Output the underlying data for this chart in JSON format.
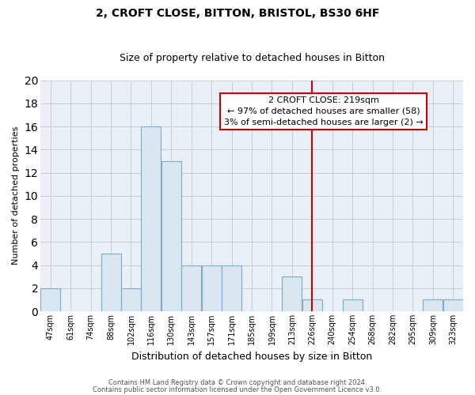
{
  "title": "2, CROFT CLOSE, BITTON, BRISTOL, BS30 6HF",
  "subtitle": "Size of property relative to detached houses in Bitton",
  "xlabel": "Distribution of detached houses by size in Bitton",
  "ylabel": "Number of detached properties",
  "footer_line1": "Contains HM Land Registry data © Crown copyright and database right 2024.",
  "footer_line2": "Contains public sector information licensed under the Open Government Licence v3.0.",
  "bin_labels": [
    "47sqm",
    "61sqm",
    "74sqm",
    "88sqm",
    "102sqm",
    "116sqm",
    "130sqm",
    "143sqm",
    "157sqm",
    "171sqm",
    "185sqm",
    "199sqm",
    "213sqm",
    "226sqm",
    "240sqm",
    "254sqm",
    "268sqm",
    "282sqm",
    "295sqm",
    "309sqm",
    "323sqm"
  ],
  "bin_values": [
    2,
    0,
    0,
    5,
    2,
    16,
    13,
    4,
    4,
    4,
    0,
    0,
    3,
    1,
    0,
    1,
    0,
    0,
    0,
    1,
    1
  ],
  "bar_color": "#dae6f0",
  "bar_edge_color": "#7aaccc",
  "grid_color": "#cccccc",
  "vline_color": "#cc0000",
  "vline_x": 13.0,
  "annotation_title": "2 CROFT CLOSE: 219sqm",
  "annotation_line1": "← 97% of detached houses are smaller (58)",
  "annotation_line2": "3% of semi-detached houses are larger (2) →",
  "annotation_box_color": "white",
  "annotation_box_edge_color": "#cc0000",
  "ylim": [
    0,
    20
  ],
  "yticks": [
    0,
    2,
    4,
    6,
    8,
    10,
    12,
    14,
    16,
    18,
    20
  ],
  "bg_color": "#eaf0f8",
  "title_fontsize": 10,
  "subtitle_fontsize": 9,
  "ylabel_fontsize": 8,
  "xlabel_fontsize": 9,
  "tick_fontsize": 7,
  "ann_fontsize": 8,
  "footer_fontsize": 6
}
